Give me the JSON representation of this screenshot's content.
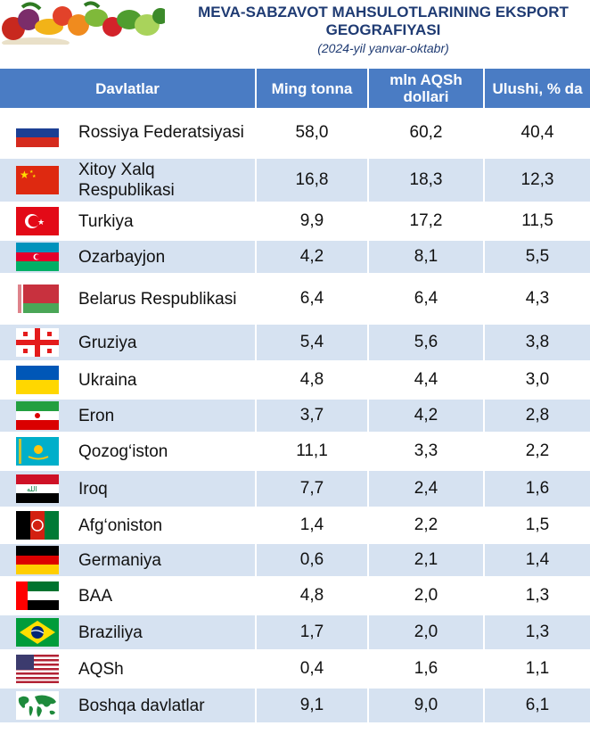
{
  "header": {
    "title": "MEVA-SABZAVOT MAHSULOTLARINING EKSPORT GEOGRAFIYASI",
    "subtitle": "(2024-yil yanvar-oktabr)"
  },
  "table": {
    "headers": [
      "Davlatlar",
      "Ming tonna",
      "mln AQSh dollari",
      "Ulushi, % da"
    ],
    "rows": [
      {
        "country": "Rossiya Federatsiyasi",
        "tonnes": "58,0",
        "usd": "60,2",
        "share": "40,4",
        "flag": "russia-flag-icon"
      },
      {
        "country": "Xitoy Xalq Respublikasi",
        "tonnes": "16,8",
        "usd": "18,3",
        "share": "12,3",
        "flag": "china-flag-icon"
      },
      {
        "country": "Turkiya",
        "tonnes": "9,9",
        "usd": "17,2",
        "share": "11,5",
        "flag": "turkey-flag-icon"
      },
      {
        "country": "Ozarbayjon",
        "tonnes": "4,2",
        "usd": "8,1",
        "share": "5,5",
        "flag": "azerbaijan-flag-icon"
      },
      {
        "country": "Belarus Respublikasi",
        "tonnes": "6,4",
        "usd": "6,4",
        "share": "4,3",
        "flag": "belarus-flag-icon"
      },
      {
        "country": "Gruziya",
        "tonnes": "5,4",
        "usd": "5,6",
        "share": "3,8",
        "flag": "georgia-flag-icon"
      },
      {
        "country": "Ukraina",
        "tonnes": "4,8",
        "usd": "4,4",
        "share": "3,0",
        "flag": "ukraine-flag-icon"
      },
      {
        "country": "Eron",
        "tonnes": "3,7",
        "usd": "4,2",
        "share": "2,8",
        "flag": "iran-flag-icon"
      },
      {
        "country": "Qozog‘iston",
        "tonnes": "11,1",
        "usd": "3,3",
        "share": "2,2",
        "flag": "kazakhstan-flag-icon"
      },
      {
        "country": "Iroq",
        "tonnes": "7,7",
        "usd": "2,4",
        "share": "1,6",
        "flag": "iraq-flag-icon"
      },
      {
        "country": "Afg‘oniston",
        "tonnes": "1,4",
        "usd": "2,2",
        "share": "1,5",
        "flag": "afghanistan-flag-icon"
      },
      {
        "country": "Germaniya",
        "tonnes": "0,6",
        "usd": "2,1",
        "share": "1,4",
        "flag": "germany-flag-icon"
      },
      {
        "country": "BAA",
        "tonnes": "4,8",
        "usd": "2,0",
        "share": "1,3",
        "flag": "uae-flag-icon"
      },
      {
        "country": "Braziliya",
        "tonnes": "1,7",
        "usd": "2,0",
        "share": "1,3",
        "flag": "brazil-flag-icon"
      },
      {
        "country": "AQSh",
        "tonnes": "0,4",
        "usd": "1,6",
        "share": "1,1",
        "flag": "usa-flag-icon"
      },
      {
        "country": "Boshqa davlatlar",
        "tonnes": "9,1",
        "usd": "9,0",
        "share": "6,1",
        "flag": "world-map-icon"
      }
    ]
  },
  "colors": {
    "header_bg": "#4a7cc4",
    "stripe": "#d6e2f1",
    "title": "#1f3b73"
  }
}
